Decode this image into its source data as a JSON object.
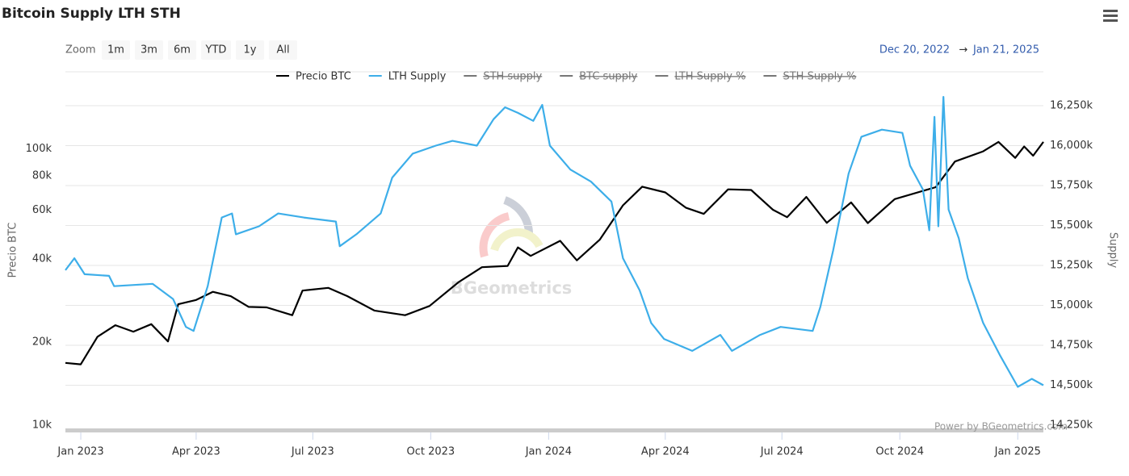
{
  "chart_data": {
    "type": "line",
    "title": "Bitcoin Supply LTH STH",
    "zoom": {
      "label": "Zoom",
      "buttons": [
        "1m",
        "3m",
        "6m",
        "YTD",
        "1y",
        "All"
      ]
    },
    "range": {
      "from": "Dec 20, 2022",
      "arrow": "→",
      "to": "Jan 21, 2025"
    },
    "ylabel": "Precio BTC",
    "y2label": "Supply",
    "watermark": "BGeometrics",
    "credit": "Power by BGeometrics.com",
    "xlim": [
      "2022-12-20",
      "2025-01-21"
    ],
    "xticks": [
      {
        "value": "2023-01-01",
        "label": "Jan 2023"
      },
      {
        "value": "2023-04-01",
        "label": "Apr 2023"
      },
      {
        "value": "2023-07-01",
        "label": "Jul 2023"
      },
      {
        "value": "2023-10-01",
        "label": "Oct 2023"
      },
      {
        "value": "2024-01-01",
        "label": "Jan 2024"
      },
      {
        "value": "2024-04-01",
        "label": "Apr 2024"
      },
      {
        "value": "2024-07-01",
        "label": "Jul 2024"
      },
      {
        "value": "2024-10-01",
        "label": "Oct 2024"
      },
      {
        "value": "2025-01-01",
        "label": "Jan 2025"
      }
    ],
    "ylog": true,
    "ylim": [
      10000,
      200000
    ],
    "yticks": [
      {
        "value": 10000,
        "label": "10k"
      },
      {
        "value": 20000,
        "label": "20k"
      },
      {
        "value": 40000,
        "label": "40k"
      },
      {
        "value": 60000,
        "label": "60k"
      },
      {
        "value": 80000,
        "label": "80k"
      },
      {
        "value": 100000,
        "label": "100k"
      }
    ],
    "y2lim": [
      14250,
      16500
    ],
    "y2ticks": [
      {
        "value": 14250,
        "label": "14,250k"
      },
      {
        "value": 14500,
        "label": "14,500k"
      },
      {
        "value": 14750,
        "label": "14,750k"
      },
      {
        "value": 15000,
        "label": "15,000k"
      },
      {
        "value": 15250,
        "label": "15,250k"
      },
      {
        "value": 15500,
        "label": "15,500k"
      },
      {
        "value": 15750,
        "label": "15,750k"
      },
      {
        "value": 16000,
        "label": "16,000k"
      },
      {
        "value": 16250,
        "label": "16,250k"
      }
    ],
    "grid": "y2",
    "series": [
      {
        "name": "Precio BTC",
        "color": "#000000",
        "visible": true,
        "x": [
          "2022-12-20",
          "2023-01-01",
          "2023-01-14",
          "2023-01-28",
          "2023-02-11",
          "2023-02-25",
          "2023-03-10",
          "2023-03-18",
          "2023-04-01",
          "2023-04-14",
          "2023-04-28",
          "2023-05-12",
          "2023-05-26",
          "2023-06-15",
          "2023-06-23",
          "2023-07-13",
          "2023-07-28",
          "2023-08-18",
          "2023-09-11",
          "2023-09-30",
          "2023-10-23",
          "2023-11-10",
          "2023-11-30",
          "2023-12-08",
          "2023-12-18",
          "2024-01-10",
          "2024-01-23",
          "2024-02-10",
          "2024-02-28",
          "2024-03-14",
          "2024-04-01",
          "2024-04-17",
          "2024-05-01",
          "2024-05-20",
          "2024-06-07",
          "2024-06-24",
          "2024-07-05",
          "2024-07-20",
          "2024-08-05",
          "2024-08-24",
          "2024-09-06",
          "2024-09-27",
          "2024-10-29",
          "2024-11-13",
          "2024-12-05",
          "2024-12-17",
          "2024-12-30",
          "2025-01-06",
          "2025-01-13",
          "2025-01-21"
        ],
        "values": [
          16800,
          16600,
          20900,
          23000,
          21800,
          23200,
          20100,
          27400,
          28400,
          30400,
          29300,
          26800,
          26700,
          25000,
          30700,
          31400,
          29300,
          26000,
          25000,
          27000,
          33000,
          37300,
          37700,
          44000,
          41000,
          46500,
          39500,
          47000,
          62500,
          73000,
          69600,
          61300,
          58200,
          71400,
          71000,
          60200,
          56600,
          67000,
          54000,
          64000,
          53900,
          65800,
          72700,
          90000,
          98000,
          106000,
          92800,
          102000,
          94500,
          106000
        ]
      },
      {
        "name": "LTH Supply",
        "color": "#3daee9",
        "visible": true,
        "axis": "y2",
        "x": [
          "2022-12-20",
          "2022-12-27",
          "2023-01-04",
          "2023-01-23",
          "2023-01-27",
          "2023-02-26",
          "2023-03-14",
          "2023-03-24",
          "2023-03-30",
          "2023-04-10",
          "2023-04-21",
          "2023-04-29",
          "2023-05-02",
          "2023-05-20",
          "2023-06-04",
          "2023-06-24",
          "2023-07-19",
          "2023-07-22",
          "2023-08-04",
          "2023-08-23",
          "2023-09-01",
          "2023-09-17",
          "2023-10-05",
          "2023-10-18",
          "2023-11-06",
          "2023-11-19",
          "2023-11-28",
          "2023-12-08",
          "2023-12-20",
          "2023-12-27",
          "2024-01-02",
          "2024-01-18",
          "2024-02-03",
          "2024-02-19",
          "2024-02-28",
          "2024-03-12",
          "2024-03-21",
          "2024-03-31",
          "2024-04-22",
          "2024-05-14",
          "2024-05-23",
          "2024-06-14",
          "2024-06-30",
          "2024-07-25",
          "2024-07-31",
          "2024-08-10",
          "2024-08-22",
          "2024-09-01",
          "2024-09-17",
          "2024-10-03",
          "2024-10-09",
          "2024-10-19",
          "2024-10-24",
          "2024-10-28",
          "2024-10-31",
          "2024-11-04",
          "2024-11-08",
          "2024-11-16",
          "2024-11-23",
          "2024-12-05",
          "2024-12-18",
          "2025-01-01",
          "2025-01-12",
          "2025-01-21"
        ],
        "values": [
          15220,
          15295,
          15195,
          15185,
          15120,
          15135,
          15040,
          14865,
          14840,
          15120,
          15550,
          15575,
          15445,
          15495,
          15575,
          15550,
          15525,
          15370,
          15445,
          15575,
          15800,
          15950,
          16000,
          16030,
          16000,
          16165,
          16240,
          16205,
          16155,
          16255,
          16000,
          15850,
          15775,
          15650,
          15295,
          15095,
          14890,
          14790,
          14715,
          14815,
          14715,
          14815,
          14865,
          14840,
          14990,
          15345,
          15825,
          16055,
          16100,
          16080,
          15875,
          15725,
          15470,
          16180,
          15495,
          16305,
          15600,
          15420,
          15170,
          14890,
          14690,
          14490,
          14540,
          14500
        ]
      },
      {
        "name": "STH supply",
        "color": "#777777",
        "visible": false
      },
      {
        "name": "BTC supply",
        "color": "#777777",
        "visible": false
      },
      {
        "name": "LTH Supply %",
        "color": "#777777",
        "visible": false
      },
      {
        "name": "STH Supply %",
        "color": "#777777",
        "visible": false
      }
    ]
  }
}
